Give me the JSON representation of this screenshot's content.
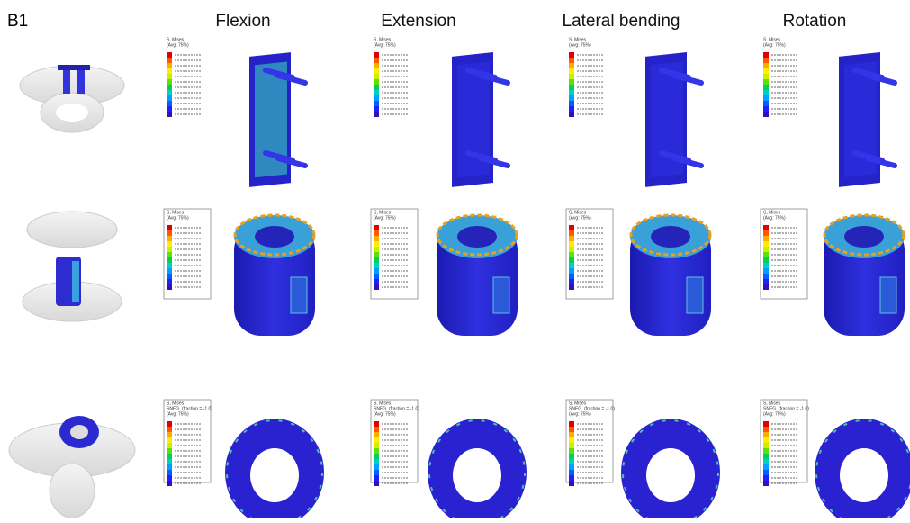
{
  "panel_label": "B1",
  "columns": [
    "Flexion",
    "Extension",
    "Lateral bending",
    "Rotation"
  ],
  "legend_titles": [
    [
      "S, Mises",
      "(Avg: 75%)"
    ],
    [
      "S, Mises",
      "(Avg: 75%)"
    ],
    [
      "S, Mises",
      "SNEG, (fraction = -1.0)",
      "(Avg: 75%)"
    ]
  ]
}
